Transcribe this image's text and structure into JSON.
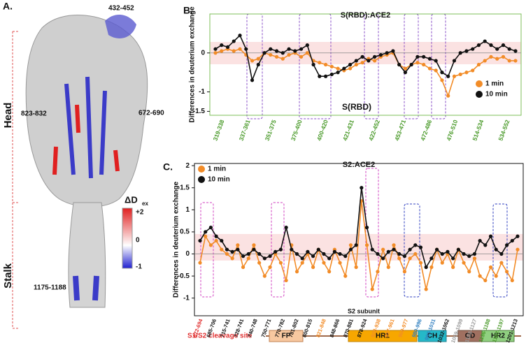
{
  "structure_panel": {
    "panel_label": "A.",
    "region_top": "432-452",
    "region_left": "823-832",
    "region_right": "672-690",
    "region_stalk": "1175-1188",
    "head_label": "Head",
    "stalk_label": "Stalk",
    "colorbar_title": "ΔD",
    "colorbar_sub": "ex",
    "colorbar_max": "+2",
    "colorbar_mid": "0",
    "colorbar_min": "-1"
  },
  "chart_data": [
    {
      "type": "line",
      "panel_label": "B.",
      "title": "S(RBD):ACE2",
      "annotation": "S(RBD)",
      "y_label": "Differences in deuterium exchange",
      "ylim": [
        -1.6,
        1.0
      ],
      "yticks": [
        -1.5,
        -1,
        0
      ],
      "legend": "lower right",
      "frame_color": "#7cbf5a",
      "x_label_color": "#4a9a2a",
      "x_labels": [
        "319-338",
        "337-361",
        "351-375",
        "375-400",
        "400-420",
        "421-431",
        "422-452",
        "453-471",
        "472-486",
        "476-510",
        "514-534",
        "534-552"
      ],
      "series": [
        {
          "name": "1 min",
          "color": "#f28c28",
          "values": [
            0.0,
            0.05,
            0.1,
            0.05,
            0.1,
            -0.05,
            -0.2,
            -0.15,
            0.0,
            -0.05,
            -0.1,
            -0.15,
            -0.05,
            0.0,
            -0.1,
            0.0,
            -0.2,
            -0.25,
            -0.3,
            -0.35,
            -0.4,
            -0.45,
            -0.4,
            -0.3,
            -0.25,
            -0.15,
            -0.2,
            -0.1,
            -0.05,
            0.0,
            -0.3,
            -0.4,
            -0.3,
            -0.25,
            -0.3,
            -0.4,
            -0.45,
            -0.7,
            -1.1,
            -0.6,
            -0.55,
            -0.5,
            -0.45,
            -0.3,
            -0.2,
            -0.1,
            -0.15,
            -0.1,
            -0.2,
            -0.2
          ]
        },
        {
          "name": "10 min",
          "color": "#111111",
          "values": [
            0.1,
            0.2,
            0.15,
            0.3,
            0.45,
            0.1,
            -0.7,
            -0.3,
            0.0,
            0.1,
            0.05,
            0.0,
            0.1,
            0.05,
            0.1,
            0.2,
            -0.3,
            -0.6,
            -0.6,
            -0.55,
            -0.5,
            -0.4,
            -0.3,
            -0.2,
            -0.1,
            -0.2,
            -0.1,
            -0.05,
            0.0,
            0.05,
            -0.3,
            -0.5,
            -0.3,
            -0.1,
            -0.1,
            -0.15,
            -0.2,
            -0.5,
            -0.6,
            -0.2,
            0.0,
            0.05,
            0.1,
            0.2,
            0.3,
            0.2,
            0.1,
            0.2,
            0.1,
            0.05
          ]
        }
      ]
    },
    {
      "type": "line",
      "panel_label": "C.",
      "title": "S2:ACE2",
      "annotation": "S2 subunit",
      "y_label": "Differences in deuterium exchange",
      "ylim": [
        -1.4,
        2.05
      ],
      "yticks": [
        -1,
        -0.5,
        0,
        0.5,
        1,
        1.5,
        2
      ],
      "legend": "upper left",
      "frame_color": "#111111",
      "x_labels": [
        "672-694",
        "685-706",
        "715-741",
        "728-741",
        "740-748",
        "750-771",
        "770-782",
        "781-802",
        "800-815",
        "821-848",
        "848-866",
        "870-881",
        "878-924",
        "923-938",
        "927-961",
        "960-977",
        "980-996",
        "993-1031",
        "1032-1062",
        "1069-1099",
        "1103-1127",
        "1136-1188",
        "1167-1197",
        "1201-1213"
      ],
      "x_label_colors": [
        "#e03030",
        "#111111",
        "#111111",
        "#111111",
        "#111111",
        "#111111",
        "#111111",
        "#111111",
        "#111111",
        "#f28c28",
        "#111111",
        "#111111",
        "#111111",
        "#f28c28",
        "#f28c28",
        "#f28c28",
        "#2f7fc0",
        "#2f7fc0",
        "#111111",
        "#999999",
        "#999999",
        "#4a9a2a",
        "#4a9a2a",
        "#111111"
      ],
      "series": [
        {
          "name": "1 min",
          "color": "#f28c28",
          "values": [
            -0.2,
            0.4,
            0.2,
            0.3,
            0.1,
            0.0,
            -0.1,
            0.2,
            -0.3,
            -0.1,
            0.2,
            -0.2,
            -0.5,
            -0.3,
            0.0,
            -0.2,
            -0.6,
            0.2,
            -0.4,
            -0.2,
            0.0,
            -0.3,
            0.1,
            -0.2,
            -0.4,
            0.1,
            -0.2,
            -0.5,
            0.2,
            -0.3,
            1.2,
            0.2,
            -0.8,
            -0.4,
            0.1,
            -0.3,
            0.2,
            -0.1,
            -0.4,
            -0.1,
            0.0,
            -0.2,
            -0.8,
            -0.3,
            0.1,
            -0.2,
            0.0,
            -0.3,
            0.1,
            -0.2,
            -0.4,
            -0.1,
            -0.5,
            -0.6,
            -0.3,
            -0.5,
            -0.2,
            -0.4,
            -0.6,
            0.1
          ]
        },
        {
          "name": "10 min",
          "color": "#111111",
          "values": [
            0.3,
            0.5,
            0.6,
            0.4,
            0.3,
            0.1,
            0.05,
            0.1,
            -0.05,
            0.0,
            0.1,
            0.0,
            -0.1,
            -0.05,
            0.05,
            0.1,
            0.6,
            0.1,
            0.0,
            -0.1,
            0.05,
            -0.05,
            0.1,
            0.0,
            -0.1,
            0.05,
            0.0,
            -0.05,
            0.1,
            0.2,
            1.5,
            0.6,
            0.1,
            0.0,
            -0.1,
            0.05,
            0.1,
            0.0,
            -0.05,
            0.1,
            0.2,
            0.15,
            -0.3,
            -0.1,
            0.1,
            0.0,
            0.05,
            -0.1,
            0.1,
            0.0,
            -0.05,
            0.0,
            0.3,
            0.2,
            0.4,
            0.1,
            0.0,
            0.2,
            0.3,
            0.4
          ]
        }
      ]
    }
  ],
  "domain_bar": {
    "cleavage_label": "S1/S2 cleavage site",
    "domains": [
      "FP",
      "HR1",
      "CH",
      "CD",
      "HR2"
    ]
  }
}
